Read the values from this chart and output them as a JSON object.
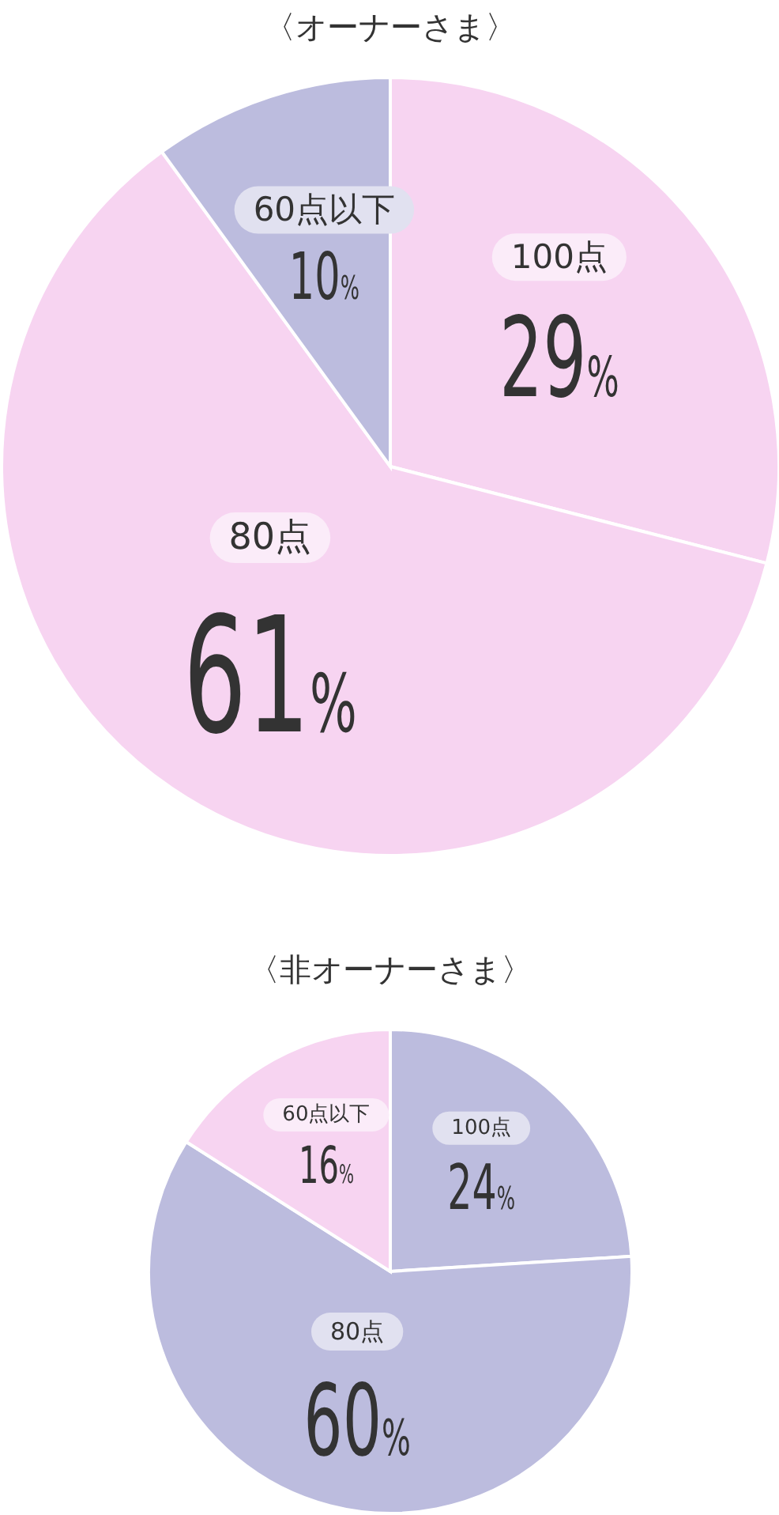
{
  "chart_data": [
    {
      "type": "pie",
      "title": "〈オーナーさま〉",
      "categories": [
        "100点",
        "80点",
        "60点以下"
      ],
      "values": [
        29,
        61,
        10
      ],
      "value_labels": [
        "29%",
        "61%",
        "10%"
      ],
      "colors": [
        "#f7d4f1",
        "#f7d4f1",
        "#bcbcde"
      ]
    },
    {
      "type": "pie",
      "title": "〈非オーナーさま〉",
      "categories": [
        "100点",
        "80点",
        "60点以下"
      ],
      "values": [
        24,
        60,
        16
      ],
      "value_labels": [
        "24%",
        "60%",
        "16%"
      ],
      "colors": [
        "#bcbcde",
        "#bcbcde",
        "#f7d4f1"
      ]
    }
  ]
}
